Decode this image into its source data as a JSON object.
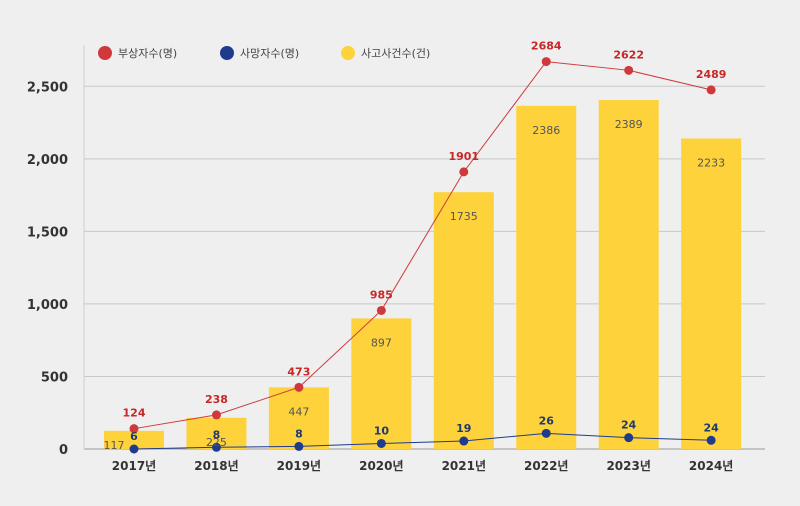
{
  "chart_data": {
    "type": "bar",
    "categories": [
      "2017년",
      "2018년",
      "2019년",
      "2020년",
      "2021년",
      "2022년",
      "2023년",
      "2024년"
    ],
    "ylim": [
      0,
      2750
    ],
    "yticks": [
      0,
      500,
      1000,
      1500,
      2000,
      2500
    ],
    "ytick_labels": [
      "0",
      "500",
      "1,000",
      "1,500",
      "2,000",
      "2,500"
    ],
    "grid": true,
    "legend_position": "top-left",
    "series": [
      {
        "name": "부상자수(명)",
        "kind": "line",
        "color": "#d0393b",
        "values": [
          124,
          238,
          473,
          985,
          1901,
          2684,
          2622,
          2489
        ],
        "plotted": [
          140,
          235,
          425,
          955,
          1910,
          2670,
          2610,
          2475
        ]
      },
      {
        "name": "사망자수(명)",
        "kind": "line",
        "color": "#1f3b8c",
        "values": [
          6,
          8,
          8,
          10,
          19,
          26,
          24,
          24
        ],
        "plotted": [
          0,
          12,
          18,
          38,
          55,
          108,
          78,
          60
        ]
      },
      {
        "name": "사고사건수(건)",
        "kind": "bar",
        "color": "#fdd23b",
        "values": [
          117,
          225,
          447,
          897,
          1735,
          2386,
          2389,
          2233
        ],
        "plotted": [
          125,
          215,
          425,
          900,
          1770,
          2365,
          2405,
          2140
        ]
      }
    ]
  }
}
